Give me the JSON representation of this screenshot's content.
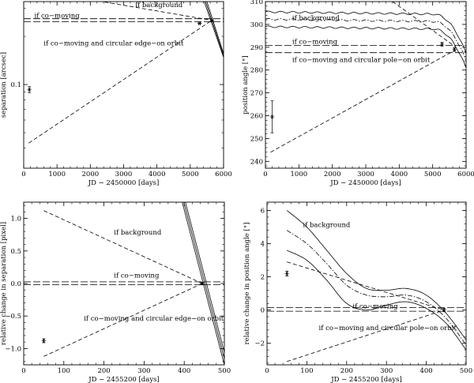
{
  "figure": {
    "description_note": ""
  },
  "chart_data": [
    {
      "id": "tl",
      "type": "line",
      "xlabel": "JD − 2450000 [days]",
      "ylabel": "separation [arcsec]",
      "xlim": [
        0,
        6000
      ],
      "ylim": [
        0.03,
        0.33
      ],
      "ylog": true,
      "xticks": [
        0,
        1000,
        2000,
        3000,
        4000,
        5000,
        6000
      ],
      "xtick_labels": [
        "0",
        "1000",
        "2000",
        "3000",
        "4000",
        "5000",
        "6000"
      ],
      "yticks": [
        0.1
      ],
      "ytick_labels": [
        "0.1"
      ],
      "lines": [
        {
          "name": "if background",
          "style": "dashed",
          "x": [
            0,
            5650
          ],
          "y": [
            0.4,
            0.252
          ]
        },
        {
          "name": "if co-moving (upper)",
          "style": "longdash",
          "x": [
            0,
            6000
          ],
          "y": [
            0.258,
            0.258
          ]
        },
        {
          "name": "if co-moving (lower)",
          "style": "longdash",
          "x": [
            0,
            6000
          ],
          "y": [
            0.247,
            0.247
          ]
        },
        {
          "name": "if co-moving and circular edge-on orbit",
          "style": "dashed",
          "x": [
            150,
            5650
          ],
          "y": [
            0.043,
            0.252
          ]
        },
        {
          "name": "steep curve 1",
          "style": "solid",
          "x": [
            5420,
            6000
          ],
          "y": [
            0.33,
            0.148
          ]
        },
        {
          "name": "steep curve 2",
          "style": "solid",
          "x": [
            5460,
            6000
          ],
          "y": [
            0.33,
            0.152
          ]
        },
        {
          "name": "steep curve 3",
          "style": "solid",
          "x": [
            5500,
            6000
          ],
          "y": [
            0.33,
            0.156
          ]
        }
      ],
      "points": [
        {
          "x": 170,
          "y": 0.093,
          "err": 0.004
        },
        {
          "x": 5280,
          "y": 0.241,
          "err": 0.002
        },
        {
          "x": 5650,
          "y": 0.251,
          "err": 0.003
        }
      ],
      "annotations": [
        {
          "text": "if background",
          "x": 3350,
          "y": 0.305
        },
        {
          "text": "if co−moving",
          "x": 320,
          "y": 0.262
        },
        {
          "text": "if co−moving and circular edge−on orbit",
          "x": 600,
          "y": 0.176
        }
      ]
    },
    {
      "id": "tr",
      "type": "line",
      "xlabel": "JD − 2450000 [days]",
      "ylabel": "position angle [°]",
      "xlim": [
        0,
        6000
      ],
      "ylim": [
        237,
        310
      ],
      "xticks": [
        0,
        1000,
        2000,
        3000,
        4000,
        5000,
        6000
      ],
      "xtick_labels": [
        "0",
        "1000",
        "2000",
        "3000",
        "4000",
        "5000",
        "6000"
      ],
      "yticks": [
        240,
        250,
        260,
        270,
        280,
        290,
        300,
        310
      ],
      "ytick_labels": [
        "240",
        "250",
        "260",
        "270",
        "280",
        "290",
        "300",
        "310"
      ],
      "curves": [
        {
          "name": "background upper",
          "style": "solid",
          "base": 305.5,
          "wiggle": 0.35
        },
        {
          "name": "background mid",
          "style": "dashdot",
          "base": 302.3,
          "wiggle": 0.35
        },
        {
          "name": "background lower",
          "style": "solid",
          "base": 299.0,
          "wiggle": 0.35
        }
      ],
      "lines": [
        {
          "name": "if co-moving (upper)",
          "style": "longdash",
          "x": [
            0,
            6000
          ],
          "y": [
            290.8,
            290.8
          ]
        },
        {
          "name": "if co-moving (lower)",
          "style": "longdash",
          "x": [
            0,
            6000
          ],
          "y": [
            287.6,
            287.6
          ]
        },
        {
          "name": "pole-on orbit",
          "style": "dashed",
          "x": [
            150,
            5700
          ],
          "y": [
            244,
            289
          ]
        },
        {
          "name": "background trend",
          "style": "dashed",
          "x": [
            3800,
            5700
          ],
          "y": [
            310,
            290
          ]
        }
      ],
      "points": [
        {
          "x": 200,
          "y": 259.5,
          "err": 7
        },
        {
          "x": 5280,
          "y": 291.3,
          "err": 0.8
        },
        {
          "x": 5650,
          "y": 289.0,
          "err": 0.8
        }
      ],
      "annotations": [
        {
          "text": "if background",
          "x": 800,
          "y": 301.8
        },
        {
          "text": "if co−moving",
          "x": 800,
          "y": 291.5
        },
        {
          "text": "if co−moving and circular pole−on orbit",
          "x": 800,
          "y": 283.5
        }
      ]
    },
    {
      "id": "bl",
      "type": "line",
      "xlabel": "JD − 2455200 [days]",
      "ylabel": "relative change in separation [pixel]",
      "xlim": [
        0,
        500
      ],
      "ylim": [
        -1.25,
        1.25
      ],
      "xticks": [
        0,
        100,
        200,
        300,
        400,
        500
      ],
      "xtick_labels": [
        "0",
        "100",
        "200",
        "300",
        "400",
        "500"
      ],
      "yticks": [
        -1.0,
        -0.5,
        0.0,
        0.5,
        1.0
      ],
      "ytick_labels": [
        "−1.0",
        "−0.5",
        "0.0",
        "0.5",
        "1.0"
      ],
      "lines": [
        {
          "name": "if background",
          "style": "dashed",
          "x": [
            50,
            445
          ],
          "y": [
            1.12,
            0.0
          ]
        },
        {
          "name": "if co-moving (upper)",
          "style": "longdash",
          "x": [
            0,
            500
          ],
          "y": [
            0.025,
            0.025
          ]
        },
        {
          "name": "if co-moving (lower)",
          "style": "longdash",
          "x": [
            0,
            500
          ],
          "y": [
            -0.02,
            -0.02
          ]
        },
        {
          "name": "edge-on orbit",
          "style": "dashed",
          "x": [
            50,
            445
          ],
          "y": [
            -1.12,
            0.0
          ]
        },
        {
          "name": "steep 1",
          "style": "solid",
          "x": [
            395,
            500
          ],
          "y": [
            1.25,
            -1.25
          ]
        },
        {
          "name": "steep 2",
          "style": "solid",
          "x": [
            399,
            504
          ],
          "y": [
            1.25,
            -1.25
          ]
        },
        {
          "name": "steep 3",
          "style": "solid",
          "x": [
            403,
            508
          ],
          "y": [
            1.25,
            -1.25
          ]
        }
      ],
      "points": [
        {
          "x": 50,
          "y": -0.88,
          "err": 0.03
        },
        {
          "x": 445,
          "y": 0.0,
          "err": 0.02
        }
      ],
      "annotations": [
        {
          "text": "if background",
          "x": 225,
          "y": 0.75
        },
        {
          "text": "if co−moving",
          "x": 225,
          "y": 0.09
        },
        {
          "text": "if co−moving and circular edge−on orbit",
          "x": 150,
          "y": -0.57
        }
      ]
    },
    {
      "id": "br",
      "type": "line",
      "xlabel": "JD − 2455200 [days]",
      "ylabel": "relative change in position angle [°]",
      "xlim": [
        0,
        500
      ],
      "ylim": [
        -3.3,
        6.5
      ],
      "xticks": [
        0,
        100,
        200,
        300,
        400,
        500
      ],
      "xtick_labels": [
        "0",
        "100",
        "200",
        "300",
        "400",
        "500"
      ],
      "yticks": [
        -2,
        0,
        2,
        4,
        6
      ],
      "ytick_labels": [
        "−2",
        "0",
        "2",
        "4",
        "6"
      ],
      "curves": [
        {
          "name": "upper",
          "style": "solid",
          "x": [
            50,
            100,
            150,
            200,
            250,
            300,
            350,
            400,
            450,
            500
          ],
          "y": [
            6.0,
            5.0,
            3.6,
            2.2,
            1.3,
            1.2,
            1.3,
            0.9,
            -0.2,
            -1.8
          ]
        },
        {
          "name": "middle",
          "style": "dashdot",
          "x": [
            50,
            100,
            150,
            200,
            250,
            300,
            350,
            400,
            450,
            500
          ],
          "y": [
            4.8,
            4.0,
            2.8,
            1.5,
            0.9,
            0.8,
            0.9,
            0.5,
            -0.5,
            -2.1
          ]
        },
        {
          "name": "lower",
          "style": "solid",
          "x": [
            50,
            100,
            150,
            200,
            250,
            300,
            350,
            400,
            450,
            500
          ],
          "y": [
            3.6,
            3.0,
            1.8,
            0.4,
            0.0,
            0.3,
            0.5,
            0.1,
            -0.8,
            -2.4
          ]
        }
      ],
      "lines": [
        {
          "name": "if background",
          "style": "dashed",
          "x": [
            50,
            445
          ],
          "y": [
            2.9,
            0.0
          ]
        },
        {
          "name": "if co-moving (upper)",
          "style": "longdash",
          "x": [
            0,
            500
          ],
          "y": [
            0.15,
            0.15
          ]
        },
        {
          "name": "if co-moving (lower)",
          "style": "longdash",
          "x": [
            0,
            500
          ],
          "y": [
            -0.07,
            -0.07
          ]
        },
        {
          "name": "pole-on orbit",
          "style": "dashed",
          "x": [
            50,
            445
          ],
          "y": [
            -3.1,
            0.0
          ]
        }
      ],
      "points": [
        {
          "x": 50,
          "y": 2.2,
          "err": 0.15
        },
        {
          "x": 445,
          "y": 0.0,
          "err": 0.1
        }
      ],
      "annotations": [
        {
          "text": "if background",
          "x": 90,
          "y": 5.0
        },
        {
          "text": "if co−moving",
          "x": 215,
          "y": 0.1
        },
        {
          "text": "if co−moving and circular pole−on orbit",
          "x": 130,
          "y": -1.2
        }
      ]
    }
  ]
}
